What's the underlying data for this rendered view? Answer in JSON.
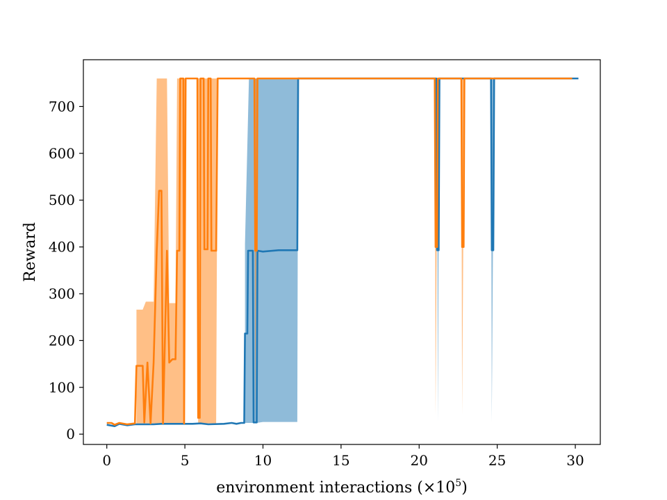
{
  "chart_data": {
    "type": "line",
    "title": "",
    "xlabel": "environment interactions (×10",
    "xlabel_exponent": "5",
    "xlabel_close": ")",
    "ylabel": "Reward",
    "xlim": [
      -1.5,
      31.6
    ],
    "ylim": [
      -22,
      800
    ],
    "xticks": [
      0,
      5,
      10,
      15,
      20,
      25,
      30
    ],
    "yticks": [
      0,
      100,
      200,
      300,
      400,
      500,
      600,
      700
    ],
    "grid": false,
    "legend": "none",
    "series": [
      {
        "color": "#1f77b4",
        "mean": [
          [
            0.0,
            20
          ],
          [
            0.5,
            17
          ],
          [
            0.8,
            22
          ],
          [
            1.3,
            19
          ],
          [
            1.8,
            21
          ],
          [
            3.0,
            21
          ],
          [
            3.5,
            22
          ],
          [
            5.5,
            22
          ],
          [
            6.0,
            23
          ],
          [
            6.5,
            21
          ],
          [
            7.5,
            22
          ],
          [
            8.0,
            24
          ],
          [
            8.3,
            22
          ],
          [
            8.6,
            24
          ],
          [
            8.8,
            24
          ],
          [
            8.85,
            215
          ],
          [
            9.0,
            215
          ],
          [
            9.05,
            392
          ],
          [
            9.35,
            392
          ],
          [
            9.4,
            25
          ],
          [
            9.6,
            25
          ],
          [
            9.65,
            392
          ],
          [
            10.0,
            390
          ],
          [
            11.0,
            393
          ],
          [
            12.2,
            393
          ],
          [
            12.25,
            760
          ],
          [
            21.1,
            760
          ],
          [
            21.15,
            393
          ],
          [
            21.25,
            393
          ],
          [
            21.3,
            760
          ],
          [
            24.6,
            760
          ],
          [
            24.65,
            393
          ],
          [
            24.75,
            393
          ],
          [
            24.8,
            760
          ],
          [
            30.2,
            760
          ]
        ],
        "band": [
          [
            8.85,
            24,
            406
          ],
          [
            9.1,
            24,
            760
          ],
          [
            9.35,
            24,
            760
          ],
          [
            9.6,
            24,
            760
          ],
          [
            10.0,
            26,
            760
          ],
          [
            11.0,
            26,
            760
          ],
          [
            12.2,
            26,
            760
          ],
          [
            12.25,
            760,
            760
          ],
          [
            21.15,
            760,
            760
          ],
          [
            21.2,
            26,
            760
          ],
          [
            21.3,
            760,
            760
          ],
          [
            24.6,
            760,
            760
          ],
          [
            24.65,
            26,
            760
          ],
          [
            24.8,
            760,
            760
          ]
        ]
      },
      {
        "color": "#ff7f0e",
        "mean": [
          [
            0.0,
            24
          ],
          [
            0.3,
            24
          ],
          [
            0.5,
            20
          ],
          [
            0.8,
            24
          ],
          [
            1.3,
            21
          ],
          [
            1.8,
            23
          ],
          [
            1.9,
            146
          ],
          [
            2.3,
            146
          ],
          [
            2.4,
            25
          ],
          [
            2.6,
            153
          ],
          [
            2.8,
            23
          ],
          [
            3.0,
            153
          ],
          [
            3.2,
            392
          ],
          [
            3.35,
            520
          ],
          [
            3.5,
            520
          ],
          [
            3.6,
            23
          ],
          [
            3.85,
            392
          ],
          [
            4.0,
            153
          ],
          [
            4.2,
            160
          ],
          [
            4.4,
            160
          ],
          [
            4.5,
            392
          ],
          [
            4.65,
            392
          ],
          [
            4.7,
            760
          ],
          [
            4.9,
            760
          ],
          [
            4.95,
            23
          ],
          [
            5.05,
            760
          ],
          [
            5.8,
            760
          ],
          [
            5.85,
            35
          ],
          [
            5.95,
            35
          ],
          [
            6.0,
            760
          ],
          [
            6.2,
            760
          ],
          [
            6.25,
            395
          ],
          [
            6.45,
            395
          ],
          [
            6.5,
            760
          ],
          [
            6.65,
            760
          ],
          [
            6.7,
            392
          ],
          [
            7.0,
            392
          ],
          [
            7.1,
            760
          ],
          [
            9.45,
            760
          ],
          [
            9.5,
            392
          ],
          [
            9.6,
            392
          ],
          [
            9.65,
            760
          ],
          [
            21.0,
            760
          ],
          [
            21.05,
            400
          ],
          [
            21.15,
            400
          ],
          [
            21.2,
            760
          ],
          [
            22.7,
            760
          ],
          [
            22.75,
            400
          ],
          [
            22.85,
            400
          ],
          [
            22.9,
            760
          ],
          [
            29.8,
            760
          ]
        ],
        "band": [
          [
            1.9,
            23,
            266
          ],
          [
            2.3,
            23,
            266
          ],
          [
            2.5,
            23,
            283
          ],
          [
            2.8,
            23,
            283
          ],
          [
            3.0,
            23,
            283
          ],
          [
            3.2,
            23,
            760
          ],
          [
            3.6,
            23,
            760
          ],
          [
            3.85,
            23,
            760
          ],
          [
            4.0,
            23,
            280
          ],
          [
            4.4,
            23,
            280
          ],
          [
            4.5,
            23,
            760
          ],
          [
            4.95,
            23,
            760
          ],
          [
            5.05,
            760,
            760
          ],
          [
            5.8,
            760,
            760
          ],
          [
            5.85,
            23,
            760
          ],
          [
            6.5,
            23,
            760
          ],
          [
            7.0,
            23,
            760
          ],
          [
            7.1,
            760,
            760
          ],
          [
            9.45,
            760,
            760
          ],
          [
            9.5,
            23,
            760
          ],
          [
            9.65,
            760,
            760
          ],
          [
            21.0,
            760,
            760
          ],
          [
            21.05,
            42,
            760
          ],
          [
            21.2,
            760,
            760
          ],
          [
            22.7,
            760,
            760
          ],
          [
            22.75,
            42,
            760
          ],
          [
            22.9,
            760,
            760
          ]
        ]
      }
    ]
  }
}
